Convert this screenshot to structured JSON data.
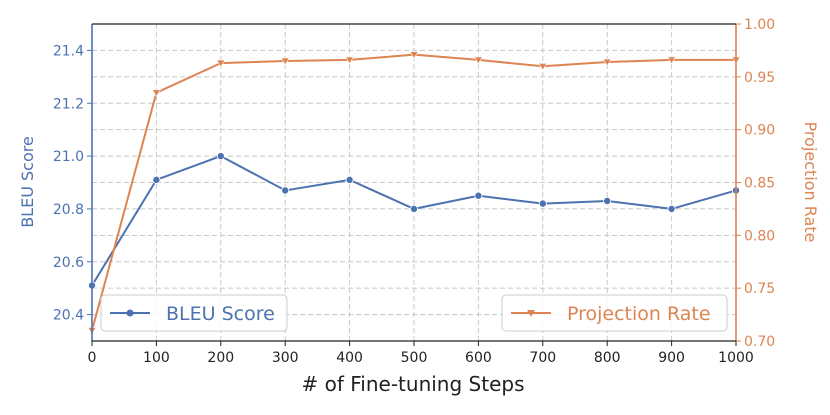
{
  "chart_data": {
    "type": "line",
    "xlabel": "# of Fine-tuning Steps",
    "x": [
      0,
      100,
      200,
      300,
      400,
      500,
      600,
      700,
      800,
      900,
      1000
    ],
    "x_ticks": [
      "0",
      "100",
      "200",
      "300",
      "400",
      "500",
      "600",
      "700",
      "800",
      "900",
      "1000"
    ],
    "xlim": [
      0,
      1000
    ],
    "grid": true,
    "left_axis": {
      "label": "BLEU Score",
      "color": "#4c72b0",
      "ylim": [
        20.3,
        21.5
      ],
      "ticks": [
        20.4,
        20.6,
        20.8,
        21.0,
        21.2,
        21.4
      ],
      "tick_labels": [
        "20.4",
        "20.6",
        "20.8",
        "21.0",
        "21.2",
        "21.4"
      ]
    },
    "right_axis": {
      "label": "Projection Rate",
      "color": "#dd8452",
      "ylim": [
        0.7,
        1.0
      ],
      "ticks": [
        0.7,
        0.75,
        0.8,
        0.85,
        0.9,
        0.95,
        1.0
      ],
      "tick_labels": [
        "0.70",
        "0.75",
        "0.80",
        "0.85",
        "0.90",
        "0.95",
        "1.00"
      ]
    },
    "series": [
      {
        "name": "BLEU Score",
        "axis": "left",
        "color": "#4c72b0",
        "marker": "circle",
        "values": [
          20.51,
          20.91,
          21.0,
          20.87,
          20.91,
          20.8,
          20.85,
          20.82,
          20.83,
          20.8,
          20.87
        ]
      },
      {
        "name": "Projection Rate",
        "axis": "right",
        "color": "#dd8452",
        "marker": "triangle-down",
        "values": [
          0.71,
          0.935,
          0.963,
          0.965,
          0.966,
          0.971,
          0.966,
          0.96,
          0.964,
          0.966,
          0.966
        ]
      }
    ],
    "legends": [
      {
        "series": "BLEU Score",
        "placement": "bottom-left"
      },
      {
        "series": "Projection Rate",
        "placement": "bottom-right"
      }
    ]
  }
}
